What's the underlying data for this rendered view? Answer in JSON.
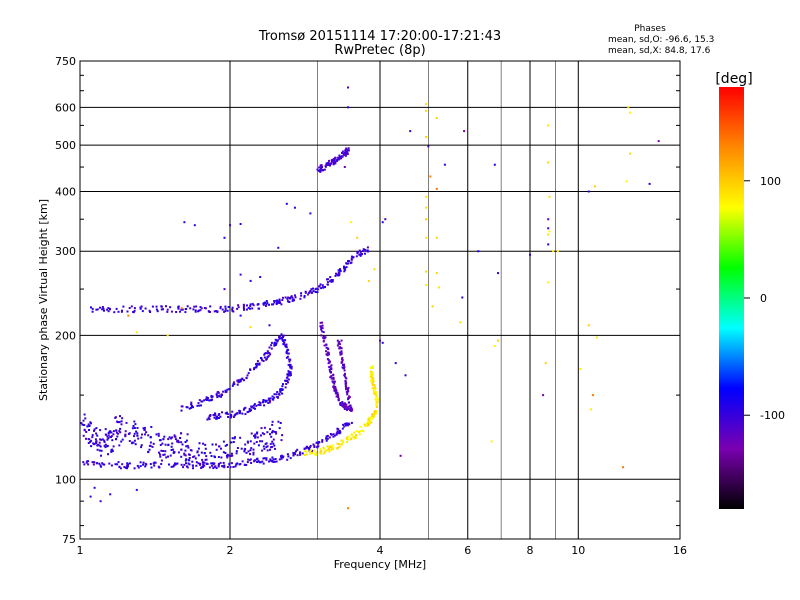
{
  "chart_data": {
    "type": "scatter",
    "title": "Tromsø 20151114 17:20:00-17:21:43",
    "subtitle": "RwPretec (8p)",
    "xlabel": "Frequency [MHz]",
    "ylabel": "Stationary phase Virtual Height [km]",
    "x_scale": "log",
    "y_scale": "log",
    "xlim": [
      1,
      16
    ],
    "ylim": [
      75,
      750
    ],
    "x_ticks": [
      1,
      2,
      4,
      6,
      8,
      10,
      16
    ],
    "x_tick_labels": [
      "1",
      "2",
      "4",
      "6",
      "8",
      "10",
      "16"
    ],
    "y_ticks": [
      75,
      100,
      200,
      300,
      400,
      500,
      600,
      750
    ],
    "y_tick_labels": [
      "75",
      "100",
      "200",
      "300",
      "400",
      "500",
      "600",
      "750"
    ],
    "grid": true,
    "stats": {
      "heading": "Phases",
      "line_o": "mean, sd,O: -96.6, 15.3",
      "line_x": "mean, sd,X:  84.8, 17.6"
    },
    "colorbar": {
      "label": "[deg]",
      "range": [
        -180,
        180
      ],
      "ticks": [
        100,
        0,
        -100
      ],
      "tick_labels": [
        "100",
        "0",
        "-100"
      ],
      "colors": [
        "#000000",
        "#7a00b0",
        "#0000ff",
        "#00ffff",
        "#00ff00",
        "#ffff00",
        "#ff8800",
        "#ff0000"
      ]
    },
    "traces": [
      {
        "name": "",
        "phase": -100,
        "kind": "curve",
        "points": [
          [
            1.0,
            108
          ],
          [
            1.15,
            107
          ],
          [
            1.3,
            107
          ],
          [
            1.5,
            107
          ],
          [
            1.7,
            107
          ],
          [
            1.9,
            107
          ],
          [
            2.1,
            108
          ],
          [
            2.3,
            109
          ],
          [
            2.5,
            110
          ],
          [
            2.7,
            113
          ],
          [
            2.9,
            116
          ],
          [
            3.1,
            121
          ],
          [
            3.3,
            126
          ],
          [
            3.5,
            131
          ]
        ]
      },
      {
        "name": "",
        "phase": -100,
        "kind": "curve",
        "points": [
          [
            1.05,
            226
          ],
          [
            1.2,
            227
          ],
          [
            1.4,
            227
          ],
          [
            1.6,
            227
          ],
          [
            1.8,
            227
          ],
          [
            2.0,
            227
          ],
          [
            2.2,
            229
          ],
          [
            2.4,
            233
          ],
          [
            2.6,
            237
          ],
          [
            2.8,
            242
          ],
          [
            3.0,
            250
          ],
          [
            3.2,
            262
          ],
          [
            3.4,
            278
          ],
          [
            3.6,
            295
          ],
          [
            3.8,
            305
          ]
        ]
      },
      {
        "name": "",
        "phase": 85,
        "kind": "curve",
        "points": [
          [
            2.8,
            114
          ],
          [
            3.0,
            114
          ],
          [
            3.2,
            116
          ],
          [
            3.4,
            120
          ],
          [
            3.6,
            125
          ],
          [
            3.8,
            131
          ],
          [
            3.9,
            137
          ],
          [
            3.95,
            145
          ],
          [
            3.9,
            153
          ],
          [
            3.85,
            162
          ],
          [
            3.85,
            172
          ]
        ]
      },
      {
        "name": "",
        "phase": -100,
        "kind": "curve",
        "points": [
          [
            1.6,
            140
          ],
          [
            1.75,
            145
          ],
          [
            1.9,
            150
          ],
          [
            2.05,
            158
          ],
          [
            2.2,
            168
          ],
          [
            2.35,
            180
          ],
          [
            2.45,
            192
          ],
          [
            2.55,
            200
          ],
          [
            2.6,
            185
          ],
          [
            2.65,
            170
          ],
          [
            2.6,
            160
          ],
          [
            2.5,
            150
          ],
          [
            2.35,
            145
          ],
          [
            2.2,
            140
          ],
          [
            2.05,
            137
          ],
          [
            1.9,
            136
          ],
          [
            1.8,
            135
          ]
        ]
      },
      {
        "name": "",
        "phase": -115,
        "kind": "curve",
        "points": [
          [
            3.05,
            213
          ],
          [
            3.1,
            195
          ],
          [
            3.15,
            180
          ],
          [
            3.2,
            165
          ],
          [
            3.25,
            155
          ],
          [
            3.3,
            147
          ],
          [
            3.4,
            142
          ],
          [
            3.5,
            140
          ],
          [
            3.45,
            150
          ],
          [
            3.4,
            165
          ],
          [
            3.35,
            180
          ],
          [
            3.3,
            195
          ]
        ]
      },
      {
        "name": "",
        "phase": -100,
        "kind": "cloud",
        "points": [
          [
            1.0,
            130
          ],
          [
            1.05,
            125
          ],
          [
            1.1,
            118
          ],
          [
            1.15,
            122
          ],
          [
            1.2,
            128
          ],
          [
            1.3,
            125
          ],
          [
            1.4,
            120
          ],
          [
            1.5,
            115
          ],
          [
            1.6,
            118
          ],
          [
            1.7,
            113
          ],
          [
            1.8,
            112
          ],
          [
            2.0,
            115
          ],
          [
            2.2,
            118
          ],
          [
            2.4,
            122
          ],
          [
            2.5,
            125
          ]
        ]
      },
      {
        "name": "",
        "phase": -105,
        "kind": "curve",
        "points": [
          [
            3.0,
            445
          ],
          [
            3.1,
            450
          ],
          [
            3.2,
            460
          ],
          [
            3.3,
            470
          ],
          [
            3.4,
            480
          ],
          [
            3.45,
            488
          ]
        ]
      },
      {
        "name": "",
        "phase": -100,
        "kind": "scatter",
        "points": [
          [
            1.05,
            92
          ],
          [
            1.07,
            96
          ],
          [
            1.1,
            90
          ],
          [
            1.15,
            93
          ],
          [
            1.3,
            95
          ],
          [
            1.62,
            345
          ],
          [
            1.7,
            340
          ],
          [
            2.1,
            268
          ],
          [
            2.2,
            260
          ],
          [
            2.3,
            265
          ],
          [
            1.95,
            250
          ],
          [
            2.6,
            377
          ],
          [
            2.7,
            370
          ],
          [
            2.9,
            360
          ],
          [
            2.0,
            340
          ],
          [
            2.1,
            342
          ],
          [
            4.1,
            350
          ],
          [
            4.05,
            345
          ],
          [
            4.0,
            195
          ],
          [
            4.05,
            193
          ],
          [
            6.9,
            270
          ],
          [
            8.0,
            295
          ],
          [
            8.7,
            350
          ],
          [
            8.7,
            335
          ],
          [
            8.7,
            310
          ],
          [
            3.45,
            660
          ],
          [
            3.45,
            600
          ],
          [
            5.4,
            455
          ],
          [
            6.8,
            455
          ],
          [
            4.6,
            535
          ],
          [
            2.1,
            220
          ],
          [
            1.95,
            320
          ],
          [
            5.0,
            497
          ]
        ]
      },
      {
        "name": "",
        "phase": -90,
        "kind": "scatter",
        "points": [
          [
            6.3,
            300
          ],
          [
            5.85,
            240
          ],
          [
            2.5,
            305
          ],
          [
            2.4,
            210
          ],
          [
            4.3,
            175
          ],
          [
            4.5,
            165
          ],
          [
            13.9,
            415
          ],
          [
            10.5,
            400
          ]
        ]
      },
      {
        "name": "",
        "phase": 90,
        "kind": "scatter",
        "points": [
          [
            4.95,
            610
          ],
          [
            4.95,
            590
          ],
          [
            4.95,
            520
          ],
          [
            4.95,
            390
          ],
          [
            4.95,
            370
          ],
          [
            4.95,
            350
          ],
          [
            4.95,
            320
          ],
          [
            4.95,
            272
          ],
          [
            4.95,
            255
          ],
          [
            5.2,
            570
          ],
          [
            5.2,
            320
          ],
          [
            5.2,
            270
          ],
          [
            5.25,
            252
          ],
          [
            8.7,
            550
          ],
          [
            8.7,
            460
          ],
          [
            8.75,
            390
          ],
          [
            8.75,
            330
          ],
          [
            8.7,
            325
          ],
          [
            8.9,
            300
          ],
          [
            9.1,
            300
          ],
          [
            10.8,
            410
          ],
          [
            10.5,
            210
          ],
          [
            12.6,
            600
          ],
          [
            12.7,
            585
          ],
          [
            12.7,
            480
          ],
          [
            12.5,
            420
          ],
          [
            6.8,
            190
          ],
          [
            6.9,
            195
          ],
          [
            8.7,
            258
          ],
          [
            8.6,
            175
          ],
          [
            10.9,
            198
          ],
          [
            10.6,
            140
          ],
          [
            10.1,
            170
          ],
          [
            3.8,
            260
          ],
          [
            3.9,
            275
          ],
          [
            3.5,
            345
          ],
          [
            3.6,
            320
          ],
          [
            1.5,
            200
          ],
          [
            1.3,
            203
          ],
          [
            2.2,
            208
          ],
          [
            5.8,
            213
          ],
          [
            5.1,
            230
          ],
          [
            6.7,
            120
          ]
        ]
      },
      {
        "name": "",
        "phase": 140,
        "kind": "scatter",
        "points": [
          [
            3.45,
            87
          ],
          [
            12.3,
            106
          ],
          [
            5.2,
            405
          ],
          [
            5.05,
            430
          ],
          [
            10.7,
            150
          ],
          [
            1.25,
            220
          ],
          [
            1.6,
            228
          ]
        ]
      },
      {
        "name": "",
        "phase": -130,
        "kind": "scatter",
        "points": [
          [
            14.5,
            510
          ],
          [
            5.9,
            535
          ],
          [
            8.5,
            150
          ],
          [
            4.4,
            112
          ],
          [
            3.4,
            450
          ],
          [
            3.05,
            200
          ],
          [
            3.35,
            195
          ]
        ]
      }
    ]
  }
}
